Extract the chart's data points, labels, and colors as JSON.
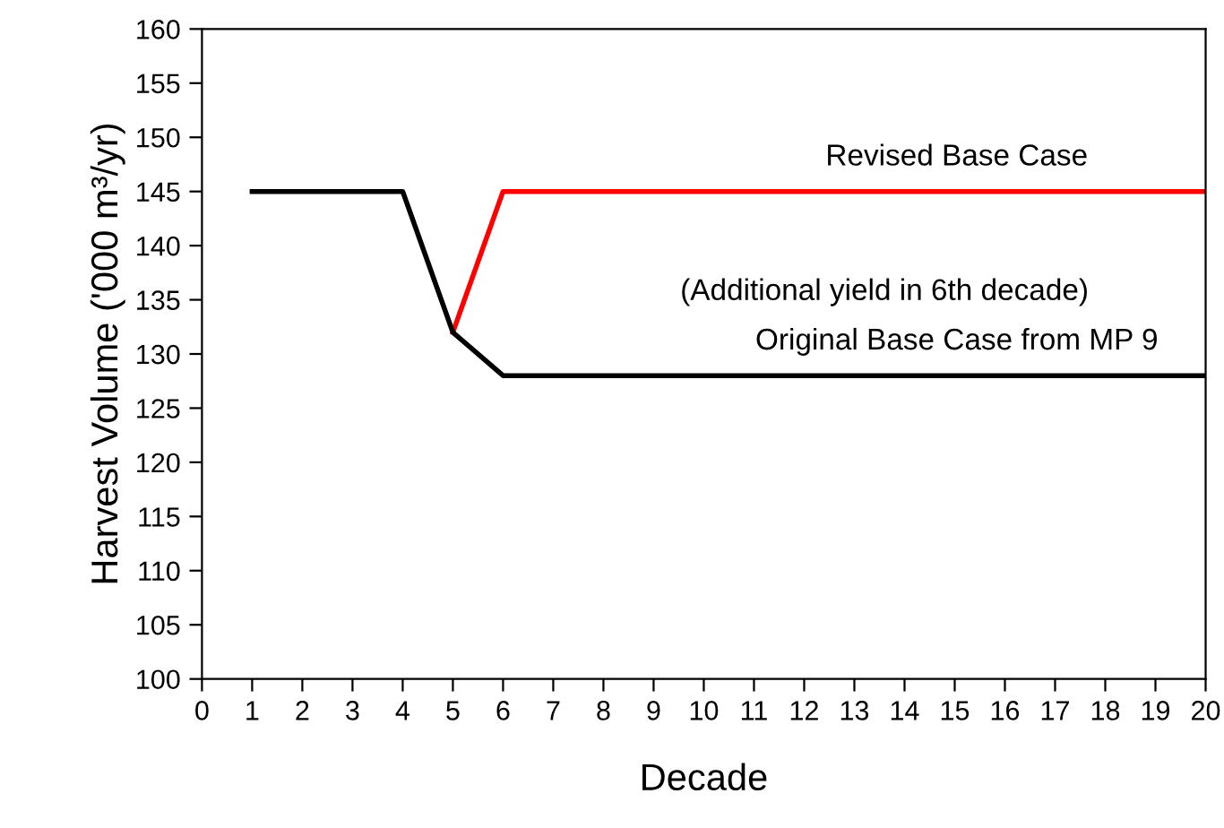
{
  "chart_data": {
    "type": "line",
    "xlabel": "Decade",
    "ylabel": "Harvest Volume ('000 m³/yr)",
    "series": [
      {
        "name": "Revised Base Case",
        "color": "#ff0000",
        "x": [
          5,
          6,
          20
        ],
        "values": [
          132,
          145,
          145
        ]
      },
      {
        "name": "Original Base Case from MP 9",
        "color": "#000000",
        "x": [
          1,
          4,
          5,
          6,
          20
        ],
        "values": [
          145,
          145,
          132,
          128,
          128
        ]
      }
    ],
    "annotations": [
      "(Additional yield in 6th decade)"
    ],
    "xlim": [
      0,
      20
    ],
    "xticks": [
      0,
      1,
      2,
      3,
      4,
      5,
      6,
      7,
      8,
      9,
      10,
      11,
      12,
      13,
      14,
      15,
      16,
      17,
      18,
      19,
      20
    ],
    "ylim": [
      100,
      160
    ],
    "yticks": [
      100,
      105,
      110,
      115,
      120,
      125,
      130,
      135,
      140,
      145,
      150,
      155,
      160
    ],
    "grid": false,
    "legend": false,
    "marker": "none",
    "line_style": "solid"
  }
}
